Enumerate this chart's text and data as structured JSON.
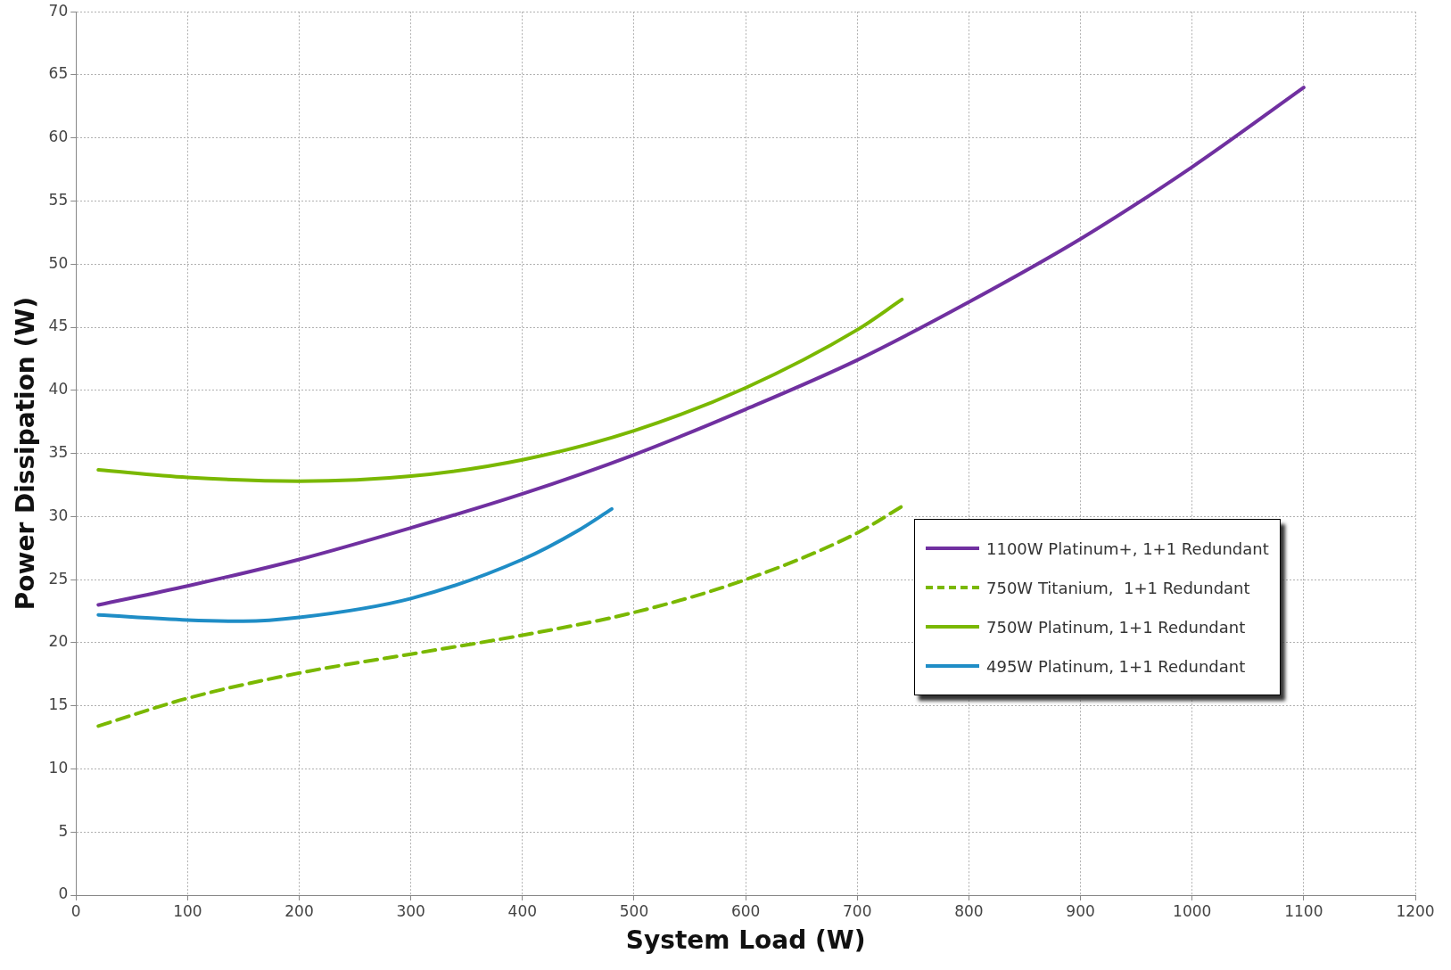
{
  "chart_data": {
    "type": "line",
    "xlabel": "System Load (W)",
    "ylabel": "Power Dissipation (W)",
    "xlim": [
      0,
      1200
    ],
    "xticks": [
      0,
      100,
      200,
      300,
      400,
      500,
      600,
      700,
      800,
      900,
      1000,
      1100,
      1200
    ],
    "ylim": [
      0,
      70
    ],
    "yticks": [
      0,
      5,
      10,
      15,
      20,
      25,
      30,
      35,
      40,
      45,
      50,
      55,
      60,
      65,
      70
    ],
    "grid": true,
    "legend": "right",
    "marker": "none",
    "series": [
      {
        "name": "1100W Platinum+, 1+1 Redundant",
        "color": "#7030a0",
        "line_style": "solid",
        "x": [
          20,
          100,
          200,
          300,
          400,
          500,
          600,
          700,
          800,
          900,
          1000,
          1100
        ],
        "values": [
          23,
          24.5,
          26.6,
          29.1,
          31.8,
          34.9,
          38.5,
          42.4,
          47,
          52,
          57.7,
          64
        ]
      },
      {
        "name": "750W Titanium,  1+1 Redundant",
        "color": "#7ab800",
        "line_style": "dashed",
        "x": [
          20,
          100,
          200,
          300,
          400,
          500,
          600,
          700,
          740
        ],
        "values": [
          13.4,
          15.6,
          17.6,
          19.1,
          20.6,
          22.4,
          25,
          28.7,
          30.8
        ]
      },
      {
        "name": "750W Platinum, 1+1 Redundant",
        "color": "#7ab800",
        "line_style": "solid",
        "x": [
          20,
          100,
          200,
          300,
          400,
          500,
          600,
          700,
          740
        ],
        "values": [
          33.7,
          33.1,
          32.8,
          33.2,
          34.5,
          36.8,
          40.2,
          44.8,
          47.2
        ]
      },
      {
        "name": "495W Platinum, 1+1 Redundant",
        "color": "#1f8dc6",
        "line_style": "solid",
        "x": [
          20,
          100,
          150,
          200,
          300,
          400,
          450,
          480
        ],
        "values": [
          22.2,
          21.8,
          21.7,
          22,
          23.5,
          26.6,
          28.9,
          30.6
        ]
      }
    ]
  }
}
